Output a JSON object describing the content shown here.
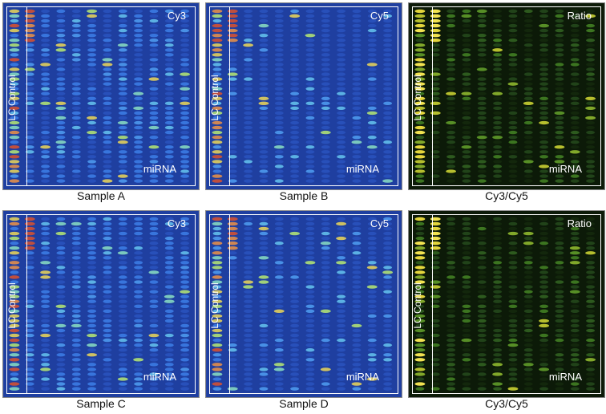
{
  "panels": [
    {
      "id": "p1",
      "channel": "Cy3",
      "control_label": "LC Control",
      "region_label": "miRNA",
      "caption": "Sample A",
      "scheme": "cy",
      "seed": 11
    },
    {
      "id": "p2",
      "channel": "Cy5",
      "control_label": "LC Control",
      "region_label": "miRNA",
      "caption": "Sample B",
      "scheme": "cy5",
      "seed": 23
    },
    {
      "id": "p3",
      "channel": "Ratio",
      "control_label": "LC Control",
      "region_label": "miRNA",
      "caption": "Cy3/Cy5",
      "scheme": "ratio",
      "seed": 37
    },
    {
      "id": "p4",
      "channel": "Cy3",
      "control_label": "LC Control",
      "region_label": "miRNA",
      "caption": "Sample C",
      "scheme": "cy",
      "seed": 53
    },
    {
      "id": "p5",
      "channel": "Cy5",
      "control_label": "LC Control",
      "region_label": "miRNA",
      "caption": "Sample D",
      "scheme": "cy5",
      "seed": 71
    },
    {
      "id": "p6",
      "channel": "Ratio",
      "control_label": "LC Control",
      "region_label": "miRNA",
      "caption": "Cy3/Cy5",
      "scheme": "ratio",
      "seed": 89
    }
  ],
  "colors": {
    "cy_background": "#1f3fa0",
    "ratio_background": "#0c1a08",
    "frame": "#ffffff"
  }
}
